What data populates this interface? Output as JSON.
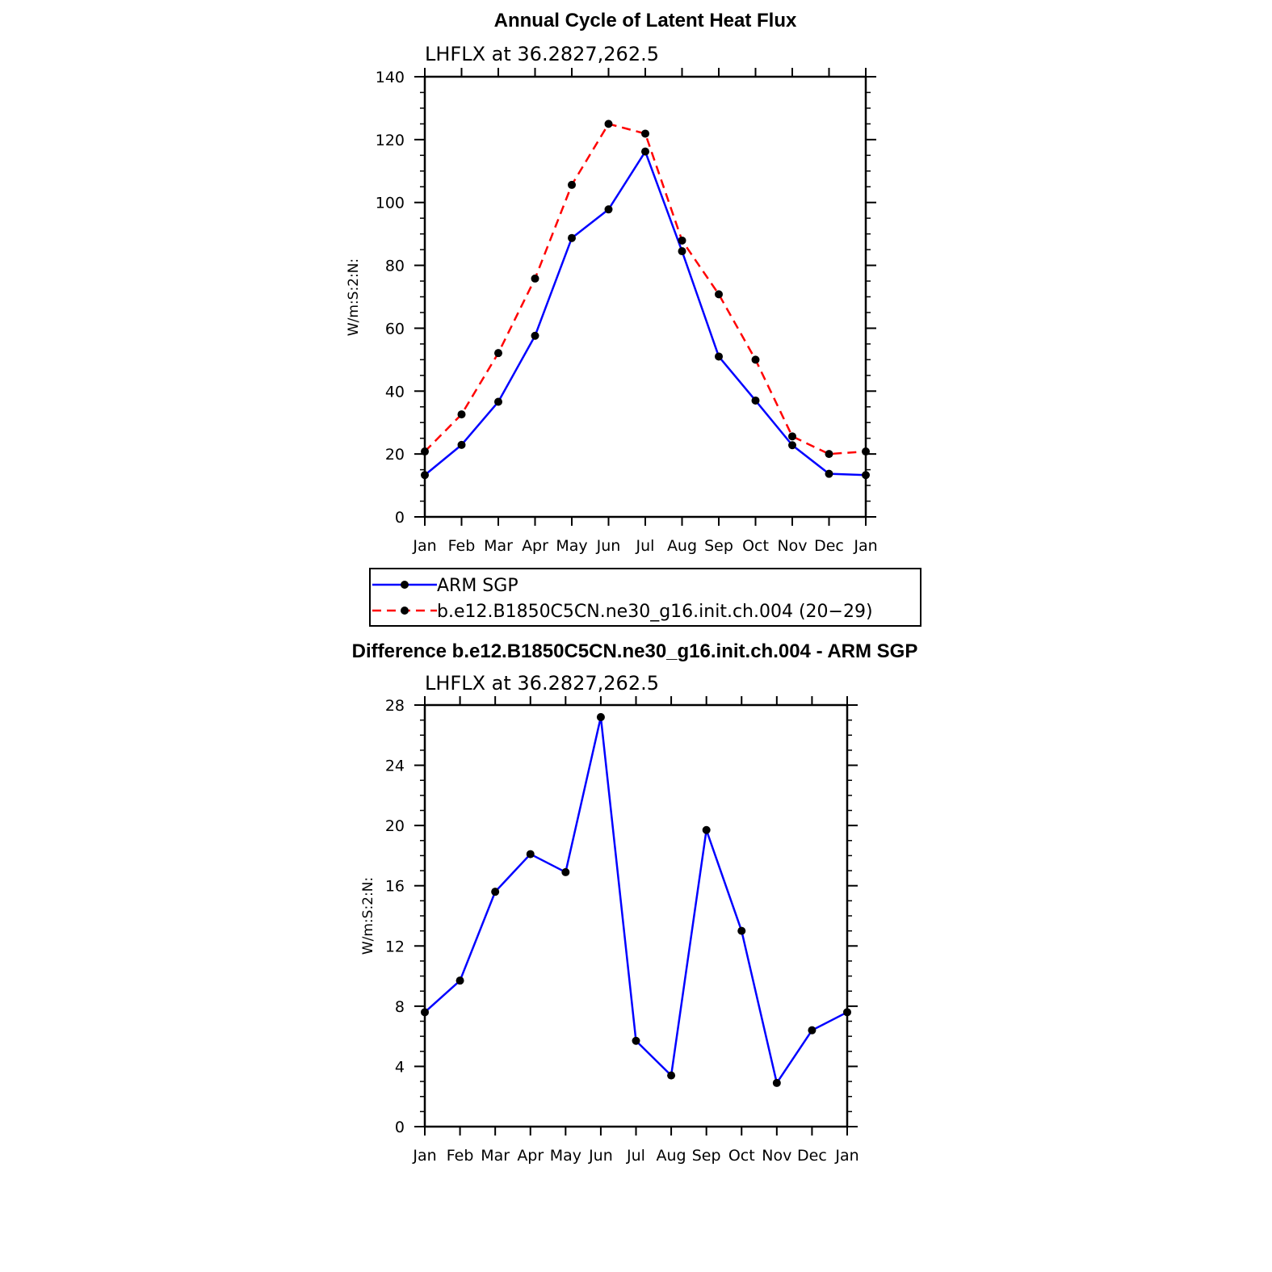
{
  "figure_title": "Annual Cycle of Latent Heat Flux",
  "chart_data": [
    {
      "type": "line",
      "title": "Annual Cycle of Latent Heat Flux",
      "subtitle": "LHFLX at 36.2827,262.5",
      "xlabel": "",
      "ylabel": "W/m:S:2:N:",
      "categories": [
        "Jan",
        "Feb",
        "Mar",
        "Apr",
        "May",
        "Jun",
        "Jul",
        "Aug",
        "Sep",
        "Oct",
        "Nov",
        "Dec",
        "Jan"
      ],
      "ylim": [
        0,
        140
      ],
      "y_ticks": [
        0,
        20,
        40,
        60,
        80,
        100,
        120,
        140
      ],
      "y_minor_step": 5,
      "grid": false,
      "legend_position": "below",
      "series": [
        {
          "name": "ARM SGP",
          "color": "#0000ff",
          "dash": "solid",
          "values": [
            13.3,
            22.9,
            36.6,
            57.6,
            88.7,
            97.8,
            116.2,
            84.5,
            51.0,
            37.0,
            22.8,
            13.7,
            13.3
          ]
        },
        {
          "name": "b.e12.B1850C5CN.ne30_g16.init.ch.004 (20−29)",
          "color": "#ff0000",
          "dash": "dashed",
          "values": [
            20.8,
            32.6,
            52.1,
            75.8,
            105.6,
            125.0,
            121.9,
            87.9,
            70.8,
            50.0,
            25.6,
            20.0,
            20.8
          ]
        }
      ]
    },
    {
      "type": "line",
      "title": "Difference b.e12.B1850C5CN.ne30_g16.init.ch.004 - ARM SGP",
      "subtitle": "LHFLX at 36.2827,262.5",
      "xlabel": "",
      "ylabel": "W/m:S:2:N:",
      "categories": [
        "Jan",
        "Feb",
        "Mar",
        "Apr",
        "May",
        "Jun",
        "Jul",
        "Aug",
        "Sep",
        "Oct",
        "Nov",
        "Dec",
        "Jan"
      ],
      "ylim": [
        0,
        28
      ],
      "y_ticks": [
        0,
        4,
        8,
        12,
        16,
        20,
        24,
        28
      ],
      "y_minor_step": 1,
      "grid": false,
      "series": [
        {
          "color": "#0000ff",
          "dash": "solid",
          "values": [
            7.6,
            9.7,
            15.6,
            18.1,
            16.9,
            27.2,
            5.7,
            3.4,
            19.7,
            13.0,
            2.9,
            6.4,
            7.6
          ]
        }
      ]
    }
  ]
}
